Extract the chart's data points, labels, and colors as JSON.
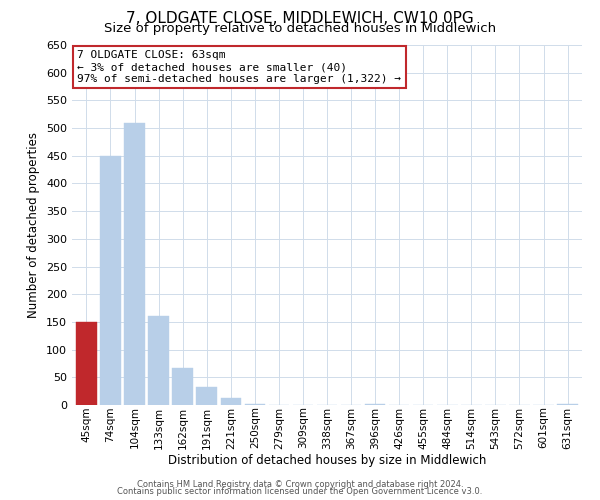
{
  "title": "7, OLDGATE CLOSE, MIDDLEWICH, CW10 0PG",
  "subtitle": "Size of property relative to detached houses in Middlewich",
  "xlabel": "Distribution of detached houses by size in Middlewich",
  "ylabel": "Number of detached properties",
  "bin_labels": [
    "45sqm",
    "74sqm",
    "104sqm",
    "133sqm",
    "162sqm",
    "191sqm",
    "221sqm",
    "250sqm",
    "279sqm",
    "309sqm",
    "338sqm",
    "367sqm",
    "396sqm",
    "426sqm",
    "455sqm",
    "484sqm",
    "514sqm",
    "543sqm",
    "572sqm",
    "601sqm",
    "631sqm"
  ],
  "bar_values": [
    150,
    450,
    510,
    160,
    67,
    32,
    12,
    1,
    0,
    0,
    0,
    0,
    1,
    0,
    0,
    0,
    0,
    0,
    0,
    0,
    1
  ],
  "highlight_bar_index": 0,
  "highlight_color": "#c0282c",
  "bar_color": "#b8cfe8",
  "ylim": [
    0,
    650
  ],
  "yticks": [
    0,
    50,
    100,
    150,
    200,
    250,
    300,
    350,
    400,
    450,
    500,
    550,
    600,
    650
  ],
  "annotation_text": "7 OLDGATE CLOSE: 63sqm\n← 3% of detached houses are smaller (40)\n97% of semi-detached houses are larger (1,322) →",
  "annotation_box_color": "#ffffff",
  "annotation_box_edge": "#c0282c",
  "footer_line1": "Contains HM Land Registry data © Crown copyright and database right 2024.",
  "footer_line2": "Contains public sector information licensed under the Open Government Licence v3.0.",
  "background_color": "#ffffff",
  "grid_color": "#d0dcea",
  "title_fontsize": 11,
  "subtitle_fontsize": 9.5,
  "axis_label_fontsize": 8.5,
  "tick_label_fontsize": 7.5,
  "ytick_fontsize": 8,
  "annotation_fontsize": 8,
  "footer_fontsize": 6
}
